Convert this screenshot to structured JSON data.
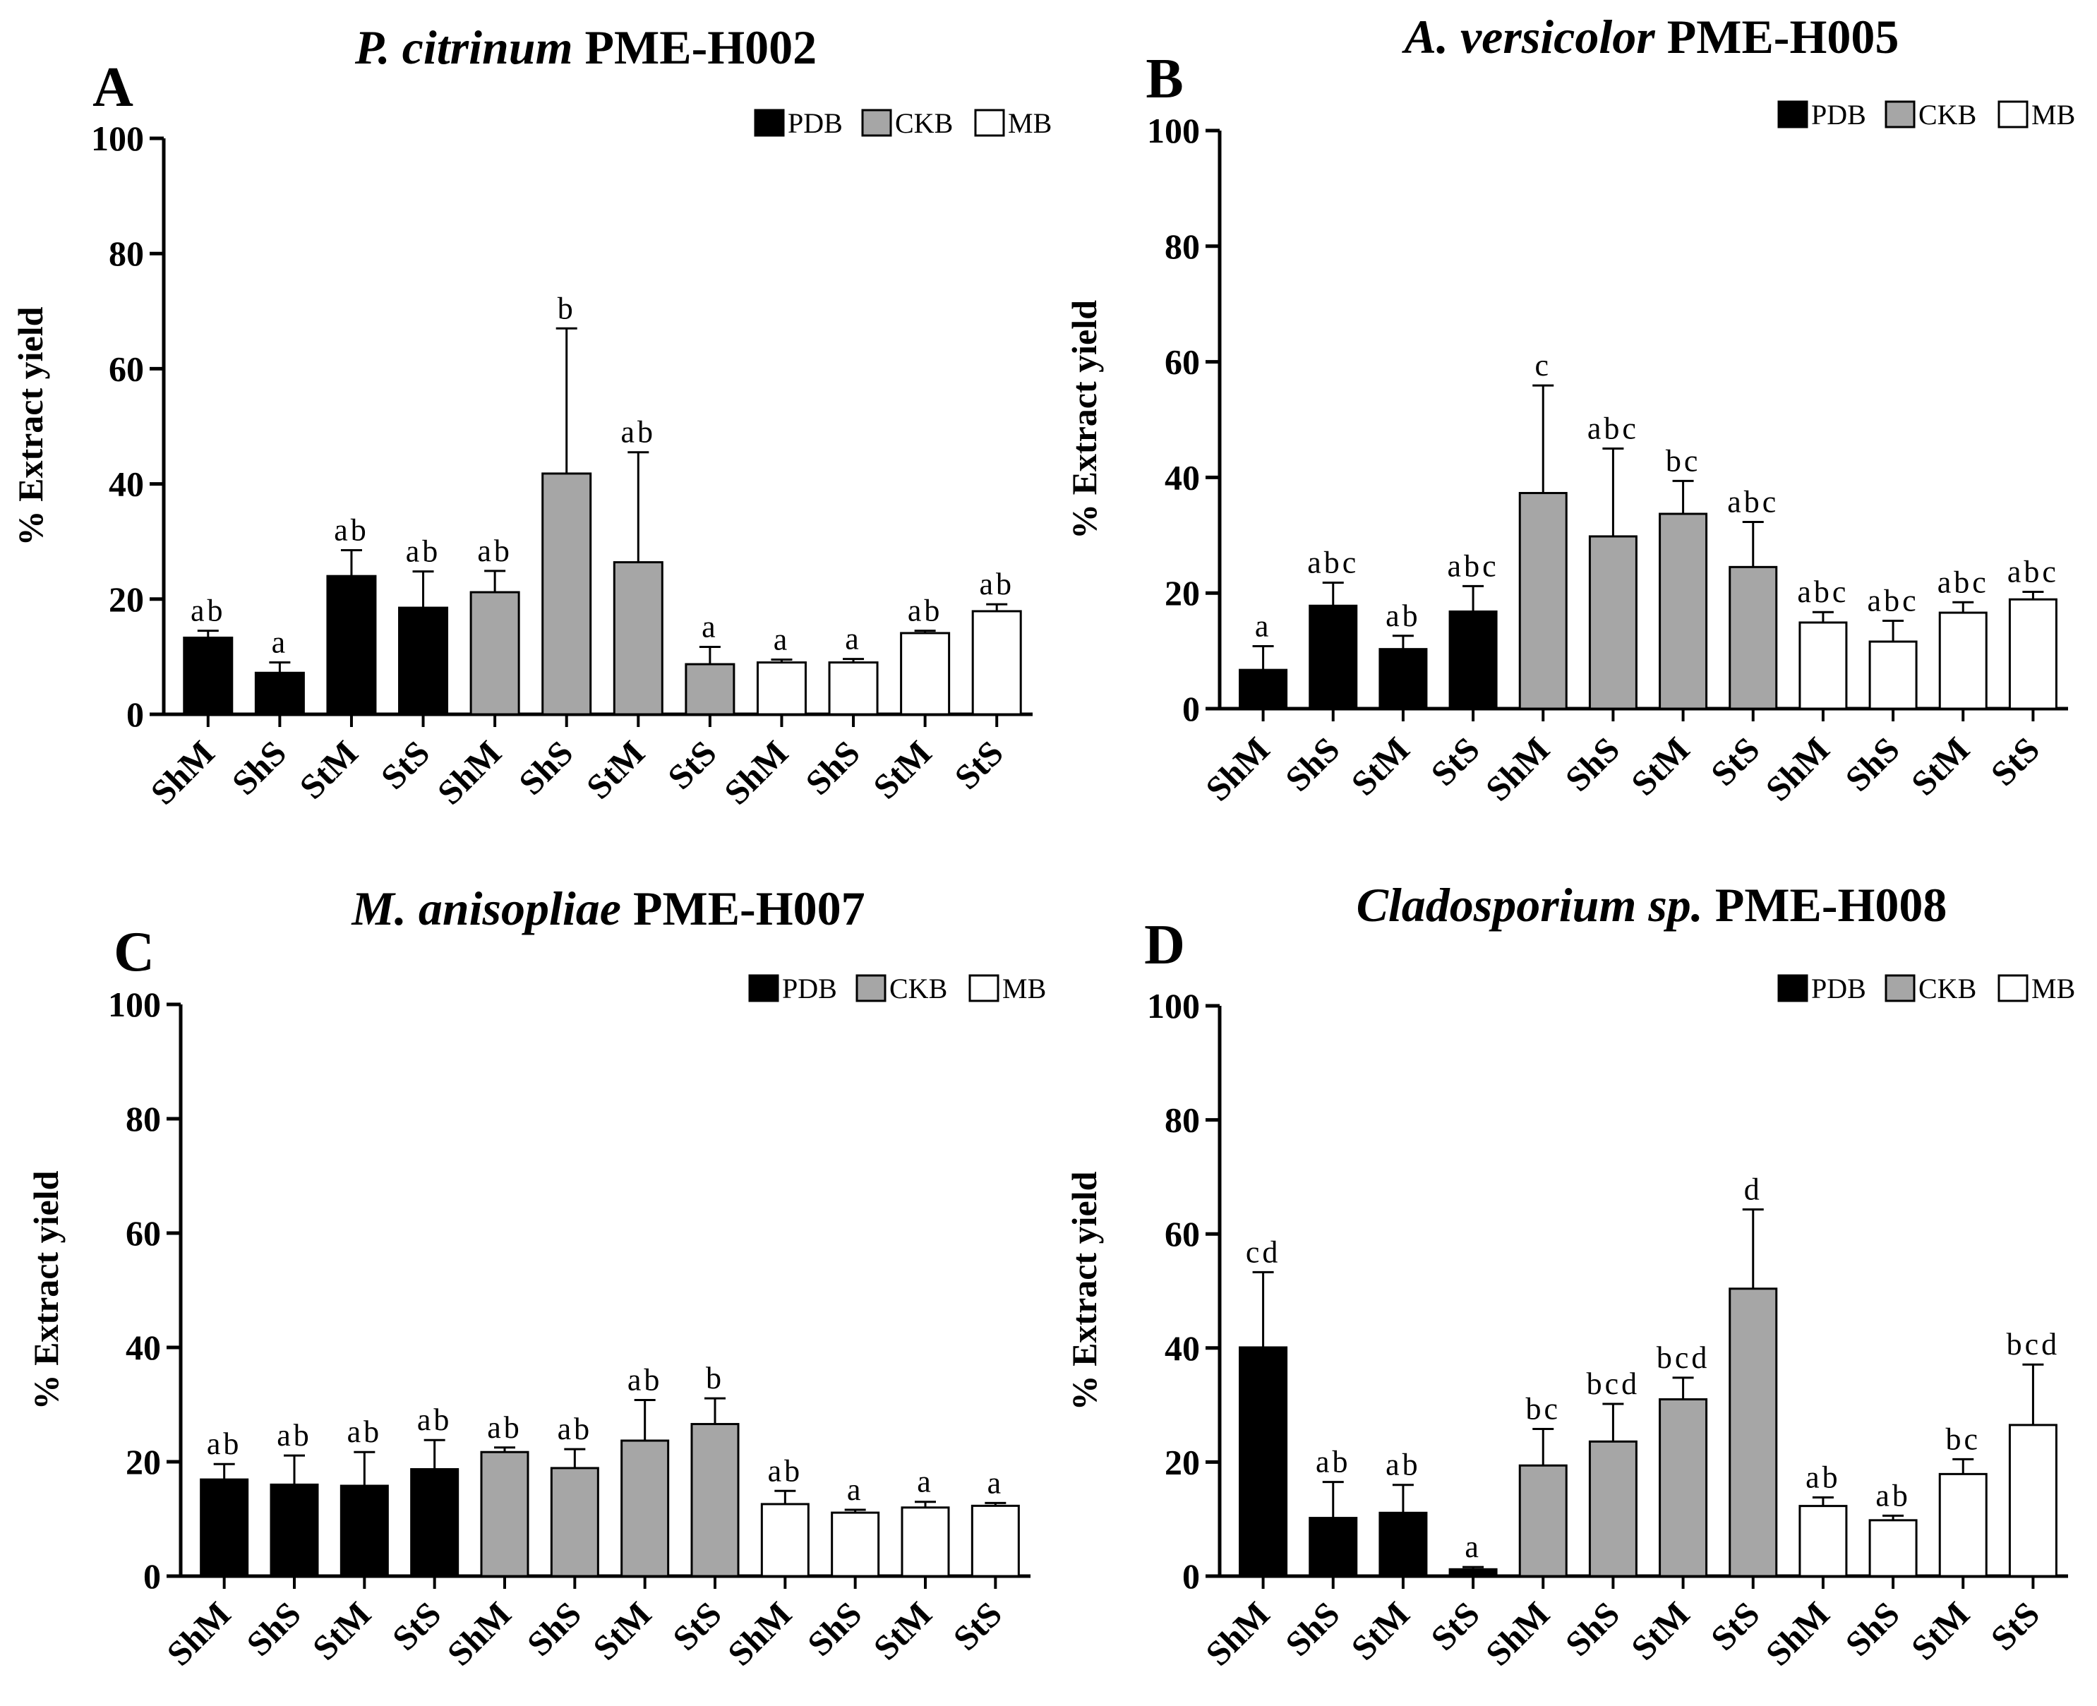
{
  "chart_data": [
    {
      "panel": "A",
      "title_italic": "P. citrinum",
      "title": "PME-H002",
      "type": "bar",
      "ylabel": "% Extract yield",
      "ylim": [
        0,
        100
      ],
      "yticks": [
        "0",
        "20",
        "40",
        "60",
        "80",
        "100"
      ],
      "legend": [
        "PDB",
        "CKB",
        "MB"
      ],
      "categories": [
        "ShM",
        "ShS",
        "StM",
        "StS",
        "ShM",
        "ShS",
        "StM",
        "StS",
        "ShM",
        "ShS",
        "StM",
        "StS"
      ],
      "groups": [
        "PDB",
        "PDB",
        "PDB",
        "PDB",
        "CKB",
        "CKB",
        "CKB",
        "CKB",
        "MB",
        "MB",
        "MB",
        "MB"
      ],
      "values": [
        13.3,
        7.2,
        24.0,
        18.5,
        21.2,
        41.8,
        26.4,
        8.7,
        9.0,
        9.0,
        14.1,
        17.9
      ],
      "errors": [
        1.2,
        1.8,
        4.5,
        6.3,
        3.7,
        25.2,
        19.1,
        3.0,
        0.5,
        0.6,
        0.4,
        1.2
      ],
      "labels": [
        "ab",
        "a",
        "ab",
        "ab",
        "ab",
        "b",
        "ab",
        "a",
        "a",
        "a",
        "ab",
        "ab"
      ]
    },
    {
      "panel": "B",
      "title_italic": "A. versicolor",
      "title": "PME-H005",
      "type": "bar",
      "ylabel": "% Extract yield",
      "ylim": [
        0,
        100
      ],
      "yticks": [
        "0",
        "20",
        "40",
        "60",
        "80",
        "100"
      ],
      "legend": [
        "PDB",
        "CKB",
        "MB"
      ],
      "categories": [
        "ShM",
        "ShS",
        "StM",
        "StS",
        "ShM",
        "ShS",
        "StM",
        "StS",
        "ShM",
        "ShS",
        "StM",
        "StS"
      ],
      "groups": [
        "PDB",
        "PDB",
        "PDB",
        "PDB",
        "CKB",
        "CKB",
        "CKB",
        "CKB",
        "MB",
        "MB",
        "MB",
        "MB"
      ],
      "values": [
        6.7,
        17.8,
        10.3,
        16.8,
        37.3,
        29.8,
        33.7,
        24.5,
        14.9,
        11.6,
        16.6,
        18.9
      ],
      "errors": [
        4.1,
        4.0,
        2.3,
        4.4,
        18.6,
        15.2,
        5.7,
        7.8,
        1.8,
        3.6,
        1.8,
        1.3
      ],
      "labels": [
        "a",
        "abc",
        "ab",
        "abc",
        "c",
        "abc",
        "bc",
        "abc",
        "abc",
        "abc",
        "abc",
        "abc"
      ]
    },
    {
      "panel": "C",
      "title_italic": "M. anisopliae",
      "title": "PME-H007",
      "type": "bar",
      "ylabel": "% Extract yield",
      "ylim": [
        0,
        100
      ],
      "yticks": [
        "0",
        "20",
        "40",
        "60",
        "80",
        "100"
      ],
      "legend": [
        "PDB",
        "CKB",
        "MB"
      ],
      "categories": [
        "ShM",
        "ShS",
        "StM",
        "StS",
        "ShM",
        "ShS",
        "StM",
        "StS",
        "ShM",
        "ShS",
        "StM",
        "StS"
      ],
      "groups": [
        "PDB",
        "PDB",
        "PDB",
        "PDB",
        "CKB",
        "CKB",
        "CKB",
        "CKB",
        "MB",
        "MB",
        "MB",
        "MB"
      ],
      "values": [
        16.9,
        16.0,
        15.8,
        18.7,
        21.7,
        18.9,
        23.7,
        26.6,
        12.6,
        11.1,
        12.0,
        12.3
      ],
      "errors": [
        2.7,
        5.1,
        5.9,
        5.1,
        0.8,
        3.3,
        7.1,
        4.5,
        2.3,
        0.5,
        1.0,
        0.5
      ],
      "labels": [
        "ab",
        "ab",
        "ab",
        "ab",
        "ab",
        "ab",
        "ab",
        "b",
        "ab",
        "a",
        "a",
        "a"
      ]
    },
    {
      "panel": "D",
      "title_italic": "Cladosporium sp.",
      "title": "PME-H008",
      "type": "bar",
      "ylabel": "% Extract yield",
      "ylim": [
        0,
        100
      ],
      "yticks": [
        "0",
        "20",
        "40",
        "60",
        "80",
        "100"
      ],
      "legend": [
        "PDB",
        "CKB",
        "MB"
      ],
      "categories": [
        "ShM",
        "ShS",
        "StM",
        "StS",
        "ShM",
        "ShS",
        "StM",
        "StS",
        "ShM",
        "ShS",
        "StM",
        "StS"
      ],
      "groups": [
        "PDB",
        "PDB",
        "PDB",
        "PDB",
        "CKB",
        "CKB",
        "CKB",
        "CKB",
        "MB",
        "MB",
        "MB",
        "MB"
      ],
      "values": [
        40.1,
        10.2,
        11.1,
        1.2,
        19.4,
        23.6,
        31.0,
        50.4,
        12.3,
        9.8,
        17.9,
        26.5
      ],
      "errors": [
        13.2,
        6.3,
        4.9,
        0.4,
        6.4,
        6.6,
        3.8,
        13.9,
        1.5,
        0.8,
        2.6,
        10.6
      ],
      "labels": [
        "cd",
        "ab",
        "ab",
        "a",
        "bc",
        "bcd",
        "bcd",
        "d",
        "ab",
        "ab",
        "bc",
        "bcd"
      ]
    }
  ],
  "colors": {
    "PDB": "#000000",
    "CKB": "#a6a6a6",
    "MB": "#ffffff",
    "stroke": "#000000"
  }
}
